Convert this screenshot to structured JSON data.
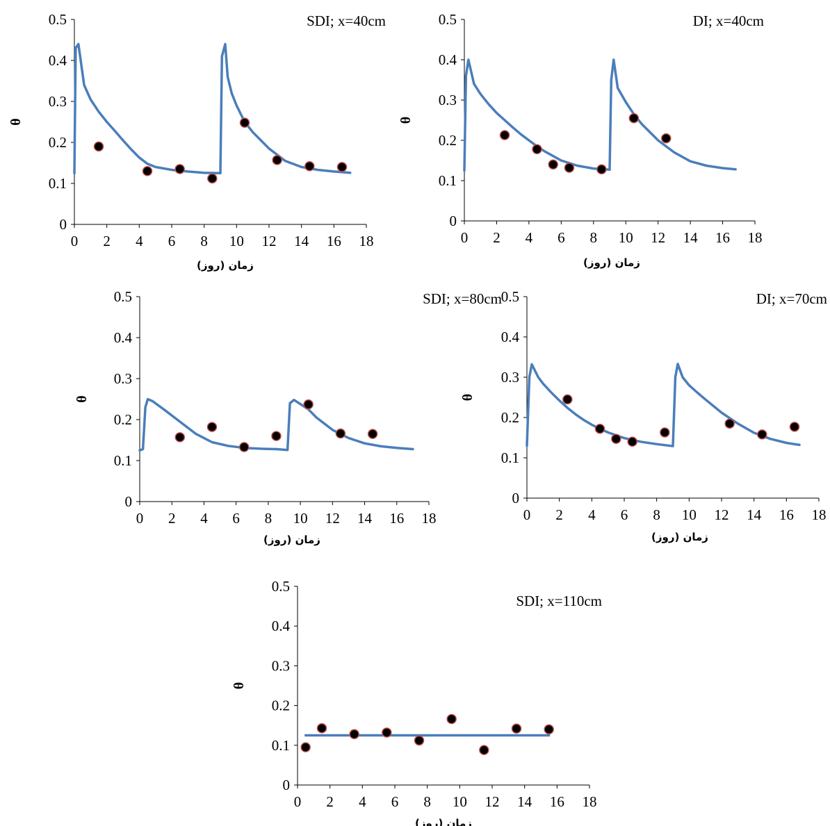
{
  "chart_data": [
    {
      "type": "scatter",
      "title": "SDI; x=40cm",
      "xlabel": "زمان (روز)",
      "ylabel": "θ",
      "xlim": [
        0,
        18
      ],
      "ylim": [
        0,
        0.5
      ],
      "xticks": [
        "0",
        "2",
        "4",
        "6",
        "8",
        "10",
        "12",
        "14",
        "16",
        "18"
      ],
      "yticks": [
        "0",
        "0.1",
        "0.2",
        "0.3",
        "0.4",
        "0.5"
      ],
      "series": [
        {
          "kind": "line",
          "color": "#4a7ebb",
          "x": [
            0,
            0.08,
            0.25,
            0.6,
            1.0,
            1.5,
            2.0,
            2.5,
            3.0,
            3.5,
            4.0,
            4.5,
            5.0,
            6.0,
            7.0,
            8.0,
            9.0,
            9.1,
            9.3,
            9.45,
            9.7,
            10.0,
            10.5,
            11.0,
            12.0,
            13.0,
            14.0,
            15.0,
            16.0,
            17.0
          ],
          "y": [
            0.125,
            0.43,
            0.44,
            0.34,
            0.305,
            0.275,
            0.25,
            0.228,
            0.205,
            0.183,
            0.163,
            0.148,
            0.14,
            0.133,
            0.129,
            0.126,
            0.125,
            0.41,
            0.44,
            0.36,
            0.32,
            0.29,
            0.25,
            0.225,
            0.185,
            0.155,
            0.14,
            0.133,
            0.129,
            0.126
          ]
        },
        {
          "kind": "points",
          "color": "#000000",
          "x": [
            1.5,
            4.5,
            6.5,
            8.5,
            10.5,
            12.5,
            14.5,
            16.5
          ],
          "y": [
            0.19,
            0.13,
            0.135,
            0.112,
            0.248,
            0.157,
            0.142,
            0.14
          ]
        }
      ]
    },
    {
      "type": "scatter",
      "title": "DI; x=40cm",
      "xlabel": "زمان (روز)",
      "ylabel": "θ",
      "xlim": [
        0,
        18
      ],
      "ylim": [
        0,
        0.5
      ],
      "xticks": [
        "0",
        "2",
        "4",
        "6",
        "8",
        "10",
        "12",
        "14",
        "16",
        "18"
      ],
      "yticks": [
        "0",
        "0.1",
        "0.2",
        "0.3",
        "0.4",
        "0.5"
      ],
      "series": [
        {
          "kind": "line",
          "color": "#4a7ebb",
          "x": [
            0,
            0.1,
            0.25,
            0.6,
            1.0,
            1.5,
            2.0,
            2.5,
            3.0,
            3.5,
            4.0,
            4.5,
            5.0,
            6.0,
            7.0,
            8.0,
            9.0,
            9.1,
            9.25,
            9.5,
            10.0,
            10.5,
            11.0,
            12.0,
            13.0,
            14.0,
            15.0,
            16.0,
            16.8
          ],
          "y": [
            0.125,
            0.36,
            0.4,
            0.34,
            0.315,
            0.29,
            0.268,
            0.25,
            0.232,
            0.215,
            0.2,
            0.185,
            0.172,
            0.15,
            0.137,
            0.13,
            0.127,
            0.35,
            0.4,
            0.33,
            0.295,
            0.265,
            0.24,
            0.2,
            0.17,
            0.148,
            0.137,
            0.131,
            0.128
          ]
        },
        {
          "kind": "points",
          "color": "#000000",
          "x": [
            2.5,
            4.5,
            5.5,
            6.5,
            8.5,
            10.5,
            12.5
          ],
          "y": [
            0.213,
            0.178,
            0.14,
            0.132,
            0.128,
            0.255,
            0.205
          ]
        }
      ]
    },
    {
      "type": "scatter",
      "title": "SDI; x=80cm",
      "xlabel": "زمان (روز)",
      "ylabel": "θ",
      "xlim": [
        0,
        18
      ],
      "ylim": [
        0,
        0.5
      ],
      "xticks": [
        "0",
        "2",
        "4",
        "6",
        "8",
        "10",
        "12",
        "14",
        "16",
        "18"
      ],
      "yticks": [
        "0",
        "0.1",
        "0.2",
        "0.3",
        "0.4",
        "0.5"
      ],
      "series": [
        {
          "kind": "line",
          "color": "#4a7ebb",
          "x": [
            0,
            0.2,
            0.35,
            0.5,
            0.8,
            1.5,
            2.5,
            3.5,
            4.5,
            5.5,
            6.5,
            7.5,
            8.5,
            9.2,
            9.35,
            9.6,
            10.0,
            10.5,
            11.0,
            12.0,
            13.0,
            14.0,
            15.0,
            16.0,
            17.0
          ],
          "y": [
            0.125,
            0.128,
            0.23,
            0.25,
            0.245,
            0.225,
            0.195,
            0.165,
            0.145,
            0.136,
            0.131,
            0.129,
            0.128,
            0.126,
            0.24,
            0.248,
            0.238,
            0.225,
            0.205,
            0.175,
            0.155,
            0.142,
            0.135,
            0.131,
            0.128
          ]
        },
        {
          "kind": "points",
          "color": "#000000",
          "x": [
            2.5,
            4.5,
            6.5,
            8.5,
            10.5,
            12.5,
            14.5
          ],
          "y": [
            0.157,
            0.182,
            0.133,
            0.16,
            0.237,
            0.166,
            0.165
          ]
        }
      ]
    },
    {
      "type": "scatter",
      "title": "DI; x=70cm",
      "xlabel": "زمان (روز)",
      "ylabel": "θ",
      "xlim": [
        0,
        18
      ],
      "ylim": [
        0,
        0.5
      ],
      "xticks": [
        "0",
        "2",
        "4",
        "6",
        "8",
        "10",
        "12",
        "14",
        "16",
        "18"
      ],
      "yticks": [
        "0",
        "0.1",
        "0.2",
        "0.3",
        "0.4",
        "0.5"
      ],
      "series": [
        {
          "kind": "line",
          "color": "#4a7ebb",
          "x": [
            0,
            0.15,
            0.3,
            0.7,
            1.0,
            1.5,
            2.0,
            2.5,
            3.0,
            3.5,
            4.0,
            4.5,
            5.0,
            6.0,
            7.0,
            8.0,
            9.0,
            9.15,
            9.3,
            9.6,
            10.0,
            10.5,
            11.0,
            12.0,
            13.0,
            14.0,
            15.0,
            16.0,
            16.8
          ],
          "y": [
            0.13,
            0.3,
            0.332,
            0.3,
            0.284,
            0.262,
            0.242,
            0.224,
            0.208,
            0.194,
            0.182,
            0.172,
            0.163,
            0.149,
            0.14,
            0.134,
            0.129,
            0.3,
            0.333,
            0.3,
            0.28,
            0.262,
            0.245,
            0.212,
            0.185,
            0.162,
            0.147,
            0.137,
            0.132
          ]
        },
        {
          "kind": "points",
          "color": "#000000",
          "x": [
            2.5,
            4.5,
            5.5,
            6.5,
            8.5,
            12.5,
            14.5,
            16.5
          ],
          "y": [
            0.245,
            0.172,
            0.147,
            0.14,
            0.163,
            0.185,
            0.158,
            0.177
          ]
        }
      ]
    },
    {
      "type": "scatter",
      "title": "SDI; x=110cm",
      "xlabel": "زمان (روز)",
      "ylabel": "θ",
      "xlim": [
        0,
        18
      ],
      "ylim": [
        0,
        0.5
      ],
      "xticks": [
        "0",
        "2",
        "4",
        "6",
        "8",
        "10",
        "12",
        "14",
        "16",
        "18"
      ],
      "yticks": [
        "0",
        "0.1",
        "0.2",
        "0.3",
        "0.4",
        "0.5"
      ],
      "series": [
        {
          "kind": "line",
          "color": "#4a7ebb",
          "x": [
            0.5,
            15.5
          ],
          "y": [
            0.125,
            0.125
          ]
        },
        {
          "kind": "points",
          "color": "#000000",
          "x": [
            0.5,
            1.5,
            3.5,
            5.5,
            7.5,
            9.5,
            11.5,
            13.5,
            15.5
          ],
          "y": [
            0.095,
            0.143,
            0.128,
            0.132,
            0.112,
            0.166,
            0.088,
            0.142,
            0.14
          ]
        }
      ]
    }
  ]
}
